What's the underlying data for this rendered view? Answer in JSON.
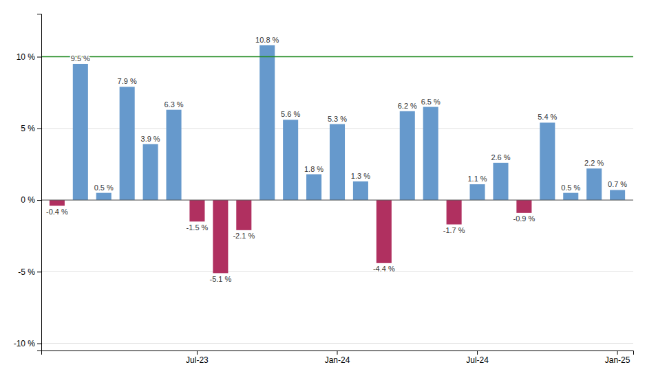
{
  "chart_data": {
    "type": "bar",
    "categories": [
      null,
      null,
      null,
      null,
      null,
      null,
      "Jul-23",
      null,
      null,
      null,
      null,
      null,
      "Jan-24",
      null,
      null,
      null,
      null,
      null,
      "Jul-24",
      null,
      null,
      null,
      null,
      null,
      "Jan-25"
    ],
    "values": [
      -0.4,
      9.5,
      0.5,
      7.9,
      3.9,
      6.3,
      -1.5,
      -5.1,
      -2.1,
      10.8,
      5.6,
      1.8,
      5.3,
      1.3,
      -4.4,
      6.2,
      6.5,
      -1.7,
      1.1,
      2.6,
      -0.9,
      5.4,
      0.5,
      2.2,
      0.7
    ],
    "value_labels": [
      "-0.4 %",
      "9.5 %",
      "0.5 %",
      "7.9 %",
      "3.9 %",
      "6.3 %",
      "-1.5 %",
      "-5.1 %",
      "-2.1 %",
      "10.8 %",
      "5.6 %",
      "1.8 %",
      "5.3 %",
      "1.3 %",
      "-4.4 %",
      "6.2 %",
      "6.5 %",
      "-1.7 %",
      "1.1 %",
      "2.6 %",
      "-0.9 %",
      "5.4 %",
      "0.5 %",
      "2.2 %",
      "0.7 %"
    ],
    "colors": [
      "#b03060",
      "#6699cc",
      "#6699cc",
      "#6699cc",
      "#6699cc",
      "#6699cc",
      "#b03060",
      "#b03060",
      "#b03060",
      "#6699cc",
      "#6699cc",
      "#6699cc",
      "#6699cc",
      "#6699cc",
      "#b03060",
      "#6699cc",
      "#6699cc",
      "#b03060",
      "#6699cc",
      "#6699cc",
      "#b03060",
      "#6699cc",
      "#6699cc",
      "#6699cc",
      "#6699cc"
    ],
    "ylim": [
      -10.5,
      13.0
    ],
    "yticks": [
      {
        "value": -10,
        "label": "-10 %"
      },
      {
        "value": -5,
        "label": "-5 %"
      },
      {
        "value": 0,
        "label": "0 %"
      },
      {
        "value": 5,
        "label": "5 %"
      },
      {
        "value": 10,
        "label": "10 %"
      }
    ],
    "reference_lines": [
      {
        "value": 10,
        "color": "#228B22"
      }
    ],
    "grid": true,
    "data_labels": true
  }
}
